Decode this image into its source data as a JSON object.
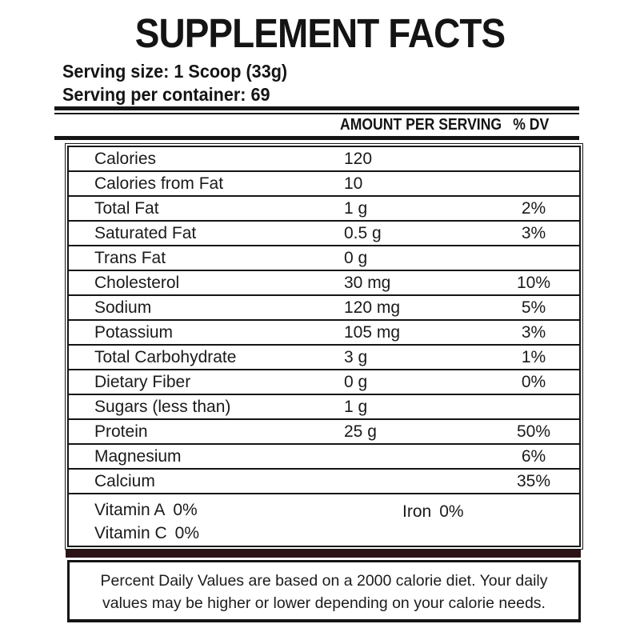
{
  "title": "SUPPLEMENT FACTS",
  "serving": {
    "size_label": "Serving size: 1 Scoop (33g)",
    "per_container_label": "Serving per container: 69"
  },
  "table": {
    "header": {
      "amount": "AMOUNT PER SERVING",
      "dv": "% DV"
    },
    "rows": [
      {
        "name": "Calories",
        "amount": "120",
        "dv": ""
      },
      {
        "name": "Calories from Fat",
        "amount": "10",
        "dv": ""
      },
      {
        "name": "Total Fat",
        "amount": "1 g",
        "dv": "2%"
      },
      {
        "name": "Saturated Fat",
        "amount": "0.5 g",
        "dv": "3%"
      },
      {
        "name": "Trans Fat",
        "amount": "0 g",
        "dv": ""
      },
      {
        "name": "Cholesterol",
        "amount": "30 mg",
        "dv": "10%"
      },
      {
        "name": "Sodium",
        "amount": "120 mg",
        "dv": "5%"
      },
      {
        "name": "Potassium",
        "amount": "105 mg",
        "dv": "3%"
      },
      {
        "name": "Total Carbohydrate",
        "amount": "3 g",
        "dv": "1%"
      },
      {
        "name": "Dietary Fiber",
        "amount": "0 g",
        "dv": "0%"
      },
      {
        "name": "Sugars (less than)",
        "amount": "1 g",
        "dv": ""
      },
      {
        "name": "Protein",
        "amount": "25 g",
        "dv": "50%"
      },
      {
        "name": "Magnesium",
        "amount": "",
        "dv": "6%"
      },
      {
        "name": "Calcium",
        "amount": "",
        "dv": "35%"
      }
    ],
    "micros": [
      {
        "name": "Vitamin A",
        "dv": "0%"
      },
      {
        "name": "Vitamin C",
        "dv": "0%"
      },
      {
        "name": "Iron",
        "dv": "0%"
      }
    ]
  },
  "footnote": "Percent Daily Values are based on a 2000 calorie diet. Your daily values may be higher or lower depending on your calorie needs.",
  "colors": {
    "text": "#1a1a1a",
    "rule": "#151515",
    "separator_bar": "#2b1317",
    "background": "#ffffff"
  }
}
